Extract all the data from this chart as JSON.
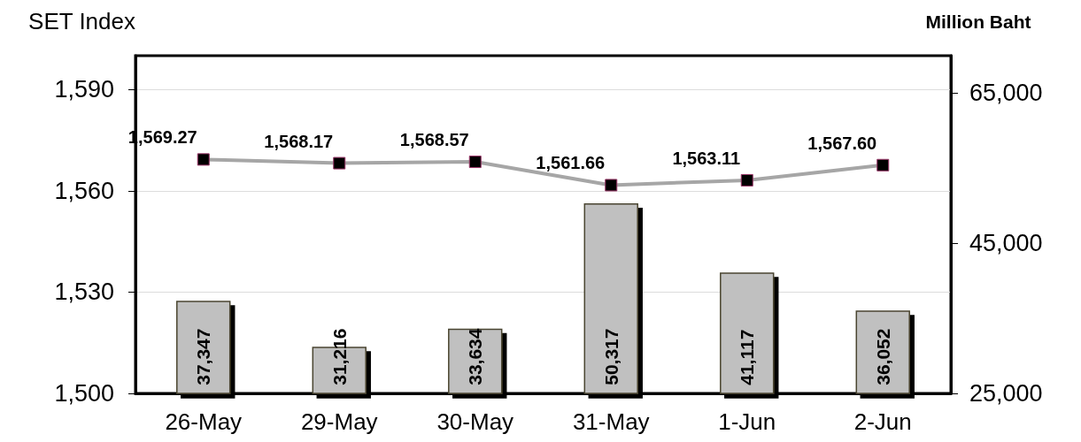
{
  "chart_data": {
    "type": "bar",
    "ylabel": "SET Index",
    "y2label": "Million Baht",
    "categories": [
      "26-May",
      "29-May",
      "30-May",
      "31-May",
      "1-Jun",
      "2-Jun"
    ],
    "series": [
      {
        "axis": "y2",
        "color": "#c0c0c0",
        "values": [
          37347,
          31216,
          33634,
          50317,
          41117,
          36052
        ],
        "value_labels": [
          "37,347",
          "31,216",
          "33,634",
          "50,317",
          "41,117",
          "36,052"
        ]
      },
      {
        "type": "line",
        "axis": "y",
        "color": "#a6a6a6",
        "values": [
          1569.27,
          1568.17,
          1568.57,
          1561.66,
          1563.11,
          1567.6
        ],
        "value_labels": [
          "1,569.27",
          "1,568.17",
          "1,568.57",
          "1,561.66",
          "1,563.11",
          "1,567.60"
        ]
      }
    ],
    "ylim": [
      1500,
      1600
    ],
    "yticks": [
      {
        "value": 1500,
        "label": "1,500"
      },
      {
        "value": 1530,
        "label": "1,530"
      },
      {
        "value": 1560,
        "label": "1,560"
      },
      {
        "value": 1590,
        "label": "1,590"
      }
    ],
    "y2lim": [
      25000,
      70000
    ],
    "y2ticks": [
      {
        "value": 25000,
        "label": "25,000"
      },
      {
        "value": 45000,
        "label": "45,000"
      },
      {
        "value": 65000,
        "label": "65,000"
      }
    ],
    "grid": "y",
    "marker": "square"
  }
}
